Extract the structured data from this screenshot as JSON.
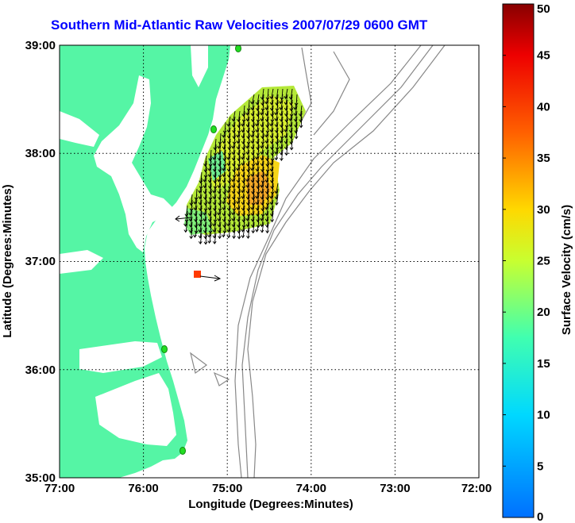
{
  "title": "Southern Mid-Atlantic Raw Velocities 2007/07/29 0600 GMT",
  "x_axis": {
    "label": "Longitude (Degrees:Minutes)",
    "ticks": [
      "77:00",
      "76:00",
      "75:00",
      "74:00",
      "73:00",
      "72:00"
    ]
  },
  "y_axis": {
    "label": "Latitude (Degrees:Minutes)",
    "ticks": [
      "39:00",
      "38:00",
      "37:00",
      "36:00",
      "35:00"
    ]
  },
  "colorbar": {
    "label": "Surface Velocity (cm/s)",
    "ticks": [
      "50",
      "45",
      "40",
      "35",
      "30",
      "25",
      "20",
      "15",
      "10",
      "5",
      "0"
    ],
    "min": 0,
    "max": 50
  },
  "colors": {
    "title": "#0000ff",
    "land": "#55f5a5",
    "stations": "#22dd22",
    "isobaths": "#888888"
  }
}
